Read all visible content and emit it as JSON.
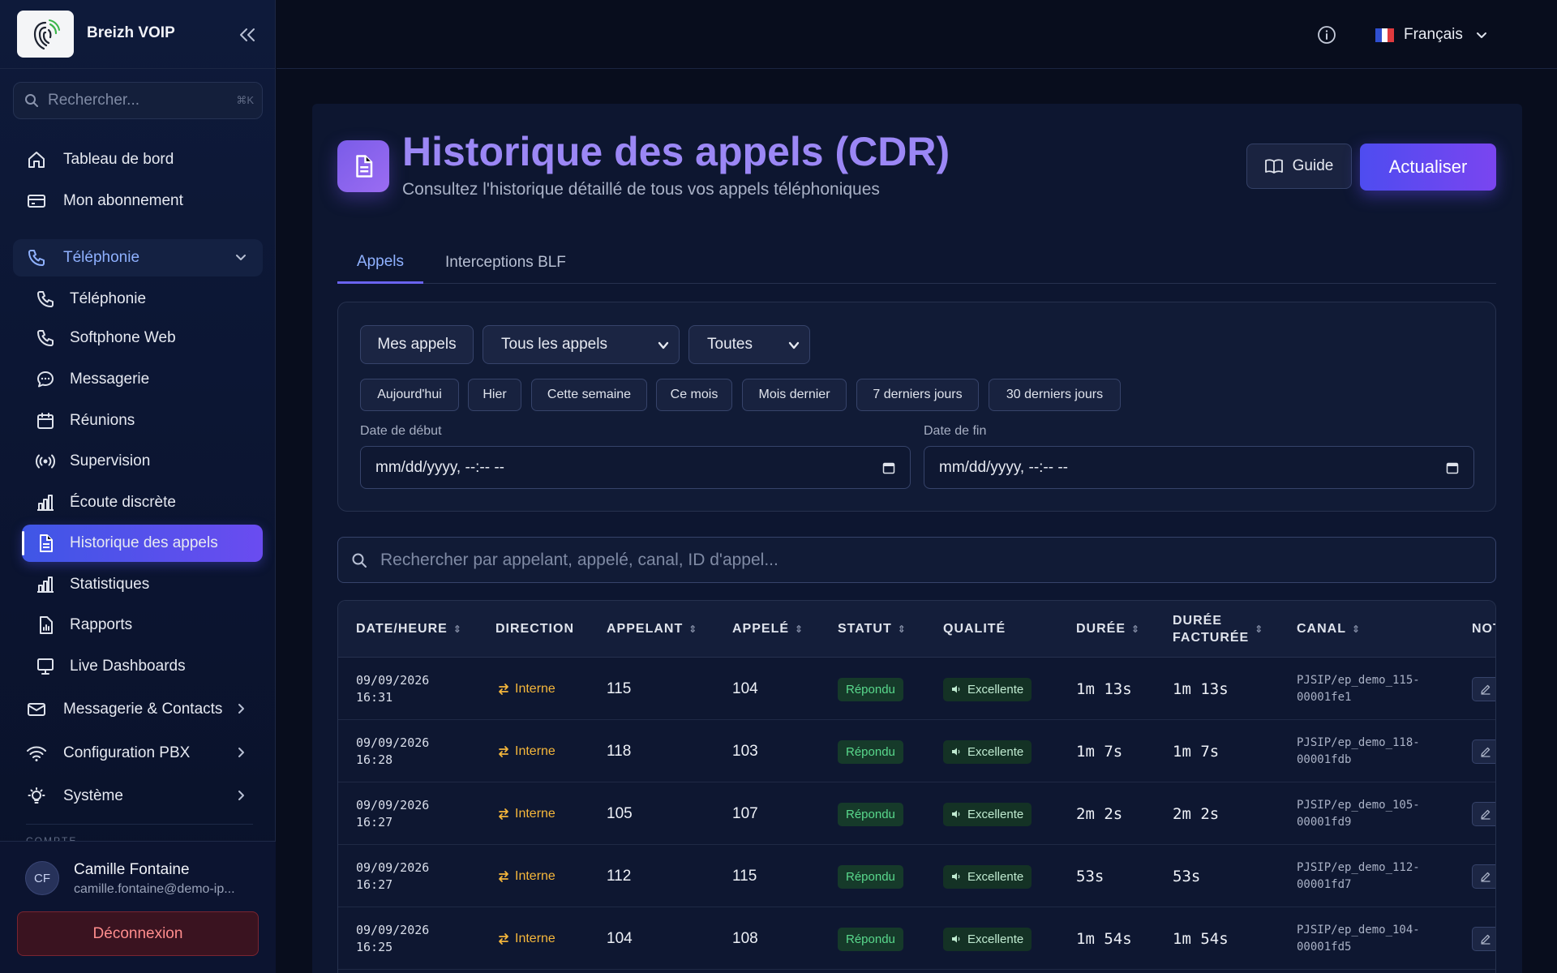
{
  "brand": {
    "name": "Breizh VOIP"
  },
  "sidebar": {
    "search": {
      "placeholder": "Rechercher...",
      "shortcut": "⌘K"
    },
    "top_items": [
      {
        "label": "Tableau de bord",
        "icon": "home-icon"
      },
      {
        "label": "Mon abonnement",
        "icon": "credit-card-icon"
      }
    ],
    "group": {
      "label": "Téléphonie",
      "icon": "phone-icon",
      "expanded": true
    },
    "sub_items": [
      {
        "label": "Téléphonie",
        "icon": "phone-icon"
      },
      {
        "label": "Softphone Web",
        "icon": "phone-icon"
      },
      {
        "label": "Messagerie",
        "icon": "chat-bubble-icon"
      },
      {
        "label": "Réunions",
        "icon": "calendar-icon"
      },
      {
        "label": "Supervision",
        "icon": "broadcast-icon"
      },
      {
        "label": "Écoute discrète",
        "icon": "bar-chart-icon"
      },
      {
        "label": "Historique des appels",
        "icon": "document-icon",
        "active": true
      },
      {
        "label": "Statistiques",
        "icon": "bar-chart-icon"
      },
      {
        "label": "Rapports",
        "icon": "report-icon"
      },
      {
        "label": "Live Dashboards",
        "icon": "monitor-icon"
      }
    ],
    "collapsed_groups": [
      {
        "label": "Messagerie & Contacts",
        "icon": "mail-icon"
      },
      {
        "label": "Configuration PBX",
        "icon": "wifi-icon"
      },
      {
        "label": "Système",
        "icon": "lightbulb-icon"
      }
    ],
    "section_label": "COMPTE",
    "user": {
      "initials": "CF",
      "name": "Camille Fontaine",
      "email": "camille.fontaine@demo-ip..."
    },
    "logout_label": "Déconnexion"
  },
  "topbar": {
    "language": "Français"
  },
  "page": {
    "title": "Historique des appels (CDR)",
    "subtitle": "Consultez l'historique détaillé de tous vos appels téléphoniques",
    "guide_label": "Guide",
    "refresh_label": "Actualiser"
  },
  "tabs": [
    {
      "label": "Appels",
      "active": true
    },
    {
      "label": "Interceptions BLF",
      "active": false
    }
  ],
  "filters": {
    "my_calls_label": "Mes appels",
    "call_type_selected": "Tous les appels",
    "status_selected": "Toutes",
    "quick_ranges": [
      "Aujourd'hui",
      "Hier",
      "Cette semaine",
      "Ce mois",
      "Mois dernier",
      "7 derniers jours",
      "30 derniers jours"
    ],
    "start_label": "Date de début",
    "end_label": "Date de fin",
    "date_placeholder": "mm/dd/yyyy, --:-- --"
  },
  "search": {
    "placeholder": "Rechercher par appelant, appelé, canal, ID d'appel..."
  },
  "table": {
    "columns": [
      {
        "label": "DATE/HEURE",
        "sortable": true
      },
      {
        "label": "DIRECTION",
        "sortable": false
      },
      {
        "label": "APPELANT",
        "sortable": true
      },
      {
        "label": "APPELÉ",
        "sortable": true
      },
      {
        "label": "STATUT",
        "sortable": true
      },
      {
        "label": "QUALITÉ",
        "sortable": false
      },
      {
        "label": "DURÉE",
        "sortable": true
      },
      {
        "label_line1": "DURÉE",
        "label_line2": "FACTURÉE",
        "sortable": true
      },
      {
        "label": "CANAL",
        "sortable": true
      },
      {
        "label": "NOT",
        "sortable": false
      }
    ],
    "rows": [
      {
        "date": "09/09/2026",
        "time": "16:31",
        "direction": "Interne",
        "caller": "115",
        "callee": "104",
        "status": "Répondu",
        "quality": "Excellente",
        "duration": "1m 13s",
        "billed": "1m 13s",
        "channel_line1": "PJSIP/ep_demo_115-",
        "channel_line2": "00001fe1"
      },
      {
        "date": "09/09/2026",
        "time": "16:28",
        "direction": "Interne",
        "caller": "118",
        "callee": "103",
        "status": "Répondu",
        "quality": "Excellente",
        "duration": "1m 7s",
        "billed": "1m 7s",
        "channel_line1": "PJSIP/ep_demo_118-",
        "channel_line2": "00001fdb"
      },
      {
        "date": "09/09/2026",
        "time": "16:27",
        "direction": "Interne",
        "caller": "105",
        "callee": "107",
        "status": "Répondu",
        "quality": "Excellente",
        "duration": "2m 2s",
        "billed": "2m 2s",
        "channel_line1": "PJSIP/ep_demo_105-",
        "channel_line2": "00001fd9"
      },
      {
        "date": "09/09/2026",
        "time": "16:27",
        "direction": "Interne",
        "caller": "112",
        "callee": "115",
        "status": "Répondu",
        "quality": "Excellente",
        "duration": "53s",
        "billed": "53s",
        "channel_line1": "PJSIP/ep_demo_112-",
        "channel_line2": "00001fd7"
      },
      {
        "date": "09/09/2026",
        "time": "16:25",
        "direction": "Interne",
        "caller": "104",
        "callee": "108",
        "status": "Répondu",
        "quality": "Excellente",
        "duration": "1m 54s",
        "billed": "1m 54s",
        "channel_line1": "PJSIP/ep_demo_104-",
        "channel_line2": "00001fd5"
      }
    ]
  },
  "colors": {
    "accent": "#6a4cf0",
    "active_nav": "#3f56e6",
    "title": "#9b87f5",
    "status_ok": "#59d88c",
    "direction_internal": "#f5b73b",
    "logout": "#ff8d8d"
  }
}
